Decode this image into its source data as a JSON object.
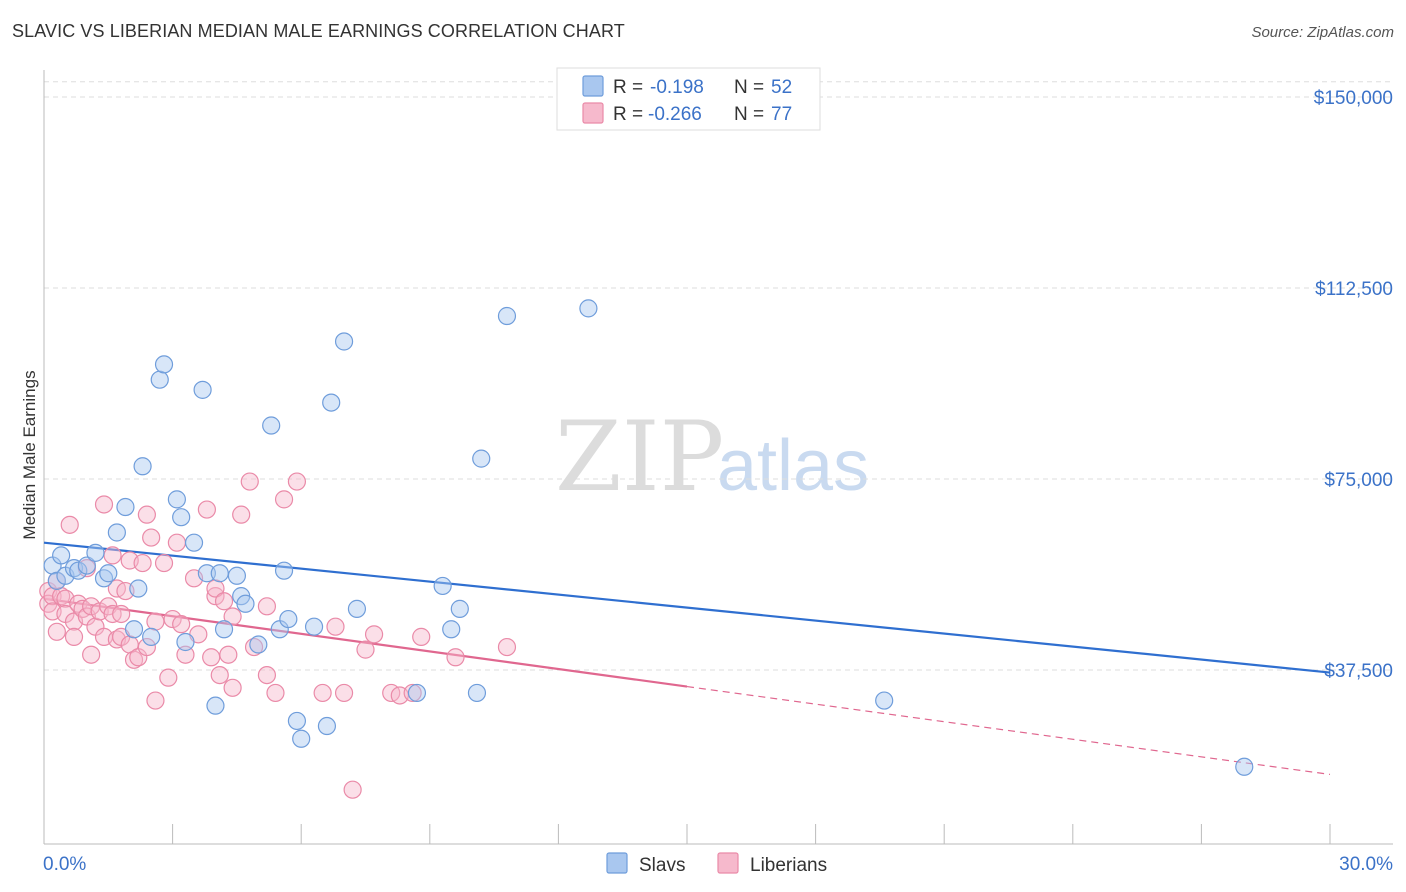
{
  "title": "SLAVIC VS LIBERIAN MEDIAN MALE EARNINGS CORRELATION CHART",
  "source": "Source: ZipAtlas.com",
  "watermark": {
    "zip": "ZIP",
    "atlas": "atlas"
  },
  "colors": {
    "slavs_fill": "#a9c7ef",
    "slavs_stroke": "#6f9ddb",
    "slavs_line": "#2f6fd0",
    "liberians_fill": "#f6b9cc",
    "liberians_stroke": "#ea8aa8",
    "liberians_line": "#e0678f",
    "value_text": "#3b72c8",
    "grid": "#dddddd"
  },
  "legend": {
    "rows": [
      {
        "r_label": "R =",
        "r_value": "-0.198",
        "n_label": "N =",
        "n_value": "52"
      },
      {
        "r_label": "R =",
        "r_value": "-0.266",
        "n_label": "N =",
        "n_value": "77"
      }
    ]
  },
  "chart_data": {
    "type": "scatter",
    "title": "SLAVIC VS LIBERIAN MEDIAN MALE EARNINGS CORRELATION CHART",
    "xlabel": "",
    "ylabel": "Median Male Earnings",
    "xlim": [
      0,
      30
    ],
    "ylim": [
      0,
      153000
    ],
    "x_tick_labels": [
      "0.0%",
      "30.0%"
    ],
    "y_ticks": [
      {
        "value": 150000,
        "label": "$150,000"
      },
      {
        "value": 112500,
        "label": "$112,500"
      },
      {
        "value": 75000,
        "label": "$75,000"
      },
      {
        "value": 37500,
        "label": "$37,500"
      }
    ],
    "grid": true,
    "legend_position": "bottom-center",
    "series": [
      {
        "name": "Slavs",
        "r": -0.198,
        "n": 52,
        "trend": {
          "x_start": 0,
          "y_start": 62500,
          "x_end": 30,
          "y_end": 37000,
          "dashed_from": null
        },
        "points": [
          [
            0.2,
            58000
          ],
          [
            0.3,
            55000
          ],
          [
            0.4,
            60000
          ],
          [
            0.5,
            56000
          ],
          [
            0.7,
            57500
          ],
          [
            0.8,
            57000
          ],
          [
            1.0,
            58000
          ],
          [
            1.2,
            60500
          ],
          [
            1.4,
            55500
          ],
          [
            1.5,
            56500
          ],
          [
            1.7,
            64500
          ],
          [
            1.9,
            69500
          ],
          [
            2.1,
            45500
          ],
          [
            2.2,
            53500
          ],
          [
            2.3,
            77500
          ],
          [
            2.5,
            44000
          ],
          [
            2.7,
            94500
          ],
          [
            2.8,
            97500
          ],
          [
            3.1,
            71000
          ],
          [
            3.2,
            67500
          ],
          [
            3.3,
            43000
          ],
          [
            3.5,
            62500
          ],
          [
            3.7,
            92500
          ],
          [
            3.8,
            56500
          ],
          [
            4.0,
            30500
          ],
          [
            4.1,
            56500
          ],
          [
            4.2,
            45500
          ],
          [
            4.5,
            56000
          ],
          [
            4.6,
            52000
          ],
          [
            4.7,
            50500
          ],
          [
            5.0,
            42500
          ],
          [
            5.3,
            85500
          ],
          [
            5.5,
            45500
          ],
          [
            5.6,
            57000
          ],
          [
            5.7,
            47500
          ],
          [
            5.9,
            27500
          ],
          [
            6.0,
            24000
          ],
          [
            6.3,
            46000
          ],
          [
            6.6,
            26500
          ],
          [
            6.7,
            90000
          ],
          [
            7.0,
            102000
          ],
          [
            7.3,
            49500
          ],
          [
            8.7,
            33000
          ],
          [
            9.3,
            54000
          ],
          [
            9.5,
            45500
          ],
          [
            9.7,
            49500
          ],
          [
            10.1,
            33000
          ],
          [
            10.2,
            79000
          ],
          [
            10.8,
            107000
          ],
          [
            12.7,
            108500
          ],
          [
            19.6,
            31500
          ],
          [
            28.0,
            18500
          ]
        ]
      },
      {
        "name": "Liberians",
        "r": -0.266,
        "n": 77,
        "trend": {
          "x_start": 0,
          "y_start": 51500,
          "x_end": 30,
          "y_end": 17000,
          "dashed_from": 15
        },
        "points": [
          [
            0.1,
            53000
          ],
          [
            0.1,
            50500
          ],
          [
            0.2,
            52000
          ],
          [
            0.2,
            49000
          ],
          [
            0.3,
            55000
          ],
          [
            0.3,
            45000
          ],
          [
            0.4,
            52000
          ],
          [
            0.5,
            51500
          ],
          [
            0.5,
            48500
          ],
          [
            0.6,
            66000
          ],
          [
            0.7,
            47000
          ],
          [
            0.7,
            44000
          ],
          [
            0.8,
            50500
          ],
          [
            0.9,
            49500
          ],
          [
            1.0,
            57500
          ],
          [
            1.0,
            48000
          ],
          [
            1.1,
            50000
          ],
          [
            1.1,
            40500
          ],
          [
            1.2,
            46000
          ],
          [
            1.3,
            49000
          ],
          [
            1.4,
            44000
          ],
          [
            1.4,
            70000
          ],
          [
            1.5,
            50000
          ],
          [
            1.6,
            48500
          ],
          [
            1.6,
            60000
          ],
          [
            1.7,
            43500
          ],
          [
            1.7,
            53500
          ],
          [
            1.8,
            44000
          ],
          [
            1.8,
            48500
          ],
          [
            1.9,
            53000
          ],
          [
            2.0,
            59000
          ],
          [
            2.0,
            42500
          ],
          [
            2.1,
            39500
          ],
          [
            2.2,
            40000
          ],
          [
            2.3,
            58500
          ],
          [
            2.4,
            42000
          ],
          [
            2.4,
            68000
          ],
          [
            2.5,
            63500
          ],
          [
            2.6,
            31500
          ],
          [
            2.6,
            47000
          ],
          [
            2.8,
            58500
          ],
          [
            2.9,
            36000
          ],
          [
            3.0,
            47500
          ],
          [
            3.1,
            62500
          ],
          [
            3.2,
            46500
          ],
          [
            3.3,
            40500
          ],
          [
            3.5,
            55500
          ],
          [
            3.6,
            44500
          ],
          [
            3.8,
            69000
          ],
          [
            3.9,
            40000
          ],
          [
            4.0,
            52000
          ],
          [
            4.0,
            53500
          ],
          [
            4.1,
            36500
          ],
          [
            4.2,
            51000
          ],
          [
            4.3,
            40500
          ],
          [
            4.4,
            48000
          ],
          [
            4.4,
            34000
          ],
          [
            4.6,
            68000
          ],
          [
            4.8,
            74500
          ],
          [
            4.9,
            42000
          ],
          [
            5.2,
            36500
          ],
          [
            5.2,
            50000
          ],
          [
            5.4,
            33000
          ],
          [
            5.6,
            71000
          ],
          [
            5.9,
            74500
          ],
          [
            6.5,
            33000
          ],
          [
            6.8,
            46000
          ],
          [
            7.0,
            33000
          ],
          [
            7.2,
            14000
          ],
          [
            7.5,
            41500
          ],
          [
            7.7,
            44500
          ],
          [
            8.1,
            33000
          ],
          [
            8.3,
            32500
          ],
          [
            8.6,
            33000
          ],
          [
            8.8,
            44000
          ],
          [
            9.6,
            40000
          ],
          [
            10.8,
            42000
          ]
        ]
      }
    ]
  }
}
